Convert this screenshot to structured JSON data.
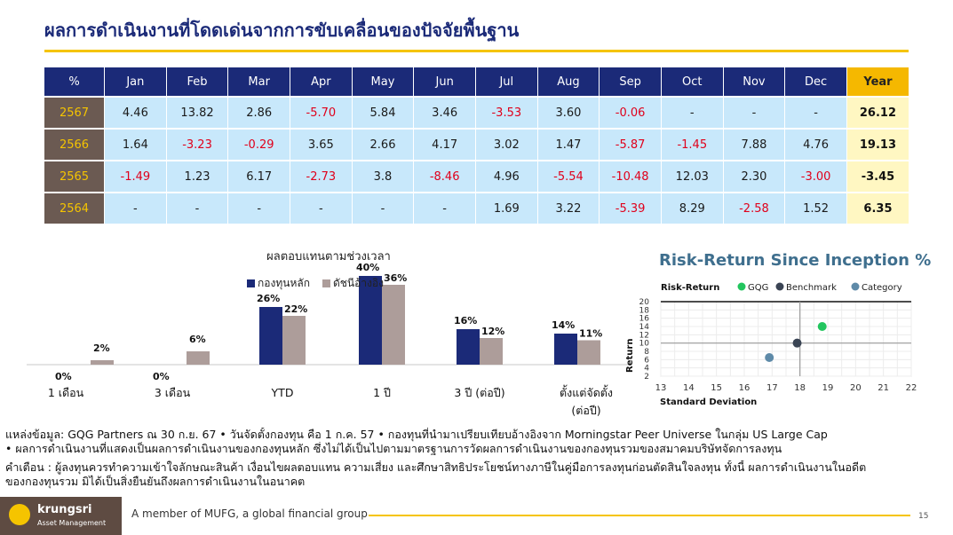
{
  "title": "ผลการดำเนินงานที่โดดเด่นจากการขับเคลื่อนของปัจจัยพื้นฐาน",
  "table": {
    "headers": [
      "%",
      "Jan",
      "Feb",
      "Mar",
      "Apr",
      "May",
      "Jun",
      "Jul",
      "Aug",
      "Sep",
      "Oct",
      "Nov",
      "Dec",
      "Year"
    ],
    "rows": [
      {
        "year": "2567",
        "values": [
          "4.46",
          "13.82",
          "2.86",
          "-5.70",
          "5.84",
          "3.46",
          "-3.53",
          "3.60",
          "-0.06",
          "-",
          "-",
          "-"
        ],
        "total": "26.12"
      },
      {
        "year": "2566",
        "values": [
          "1.64",
          "-3.23",
          "-0.29",
          "3.65",
          "2.66",
          "4.17",
          "3.02",
          "1.47",
          "-5.87",
          "-1.45",
          "7.88",
          "4.76"
        ],
        "total": "19.13"
      },
      {
        "year": "2565",
        "values": [
          "-1.49",
          "1.23",
          "6.17",
          "-2.73",
          "3.8",
          "-8.46",
          "4.96",
          "-5.54",
          "-10.48",
          "12.03",
          "2.30",
          "-3.00"
        ],
        "total": "-3.45"
      },
      {
        "year": "2564",
        "values": [
          "-",
          "-",
          "-",
          "-",
          "-",
          "-",
          "1.69",
          "3.22",
          "-5.39",
          "8.29",
          "-2.58",
          "1.52"
        ],
        "total": "6.35"
      }
    ]
  },
  "chart_data": [
    {
      "type": "bar",
      "title": "ผลตอบแทนตามช่วงเวลา",
      "categories": [
        "1 เดือน",
        "3 เดือน",
        "YTD",
        "1 ปี",
        "3 ปี (ต่อปี)",
        "ตั้งแต่จัดตั้ง (ต่อปี)"
      ],
      "series": [
        {
          "name": "กองทุนหลัก",
          "values": [
            0,
            0,
            26,
            40,
            16,
            14
          ],
          "labels": [
            "0%",
            "0%",
            "26%",
            "40%",
            "16%",
            "14%"
          ],
          "color": "#1b2a78"
        },
        {
          "name": "ดัชนีอ้างอิง",
          "values": [
            2,
            6,
            22,
            36,
            12,
            11
          ],
          "labels": [
            "2%",
            "6%",
            "22%",
            "36%",
            "12%",
            "11%"
          ],
          "color": "#ad9d9a"
        }
      ],
      "ylim": [
        0,
        45
      ],
      "legend": "top-center"
    },
    {
      "type": "scatter",
      "title": "Risk-Return Since Inception %",
      "chart_label": "Risk-Return",
      "xlabel": "Standard Deviation",
      "ylabel": "Return",
      "xlim": [
        13,
        22
      ],
      "ylim": [
        2,
        20
      ],
      "x_ticks": [
        "13",
        "14",
        "15",
        "16",
        "17",
        "18",
        "19",
        "20",
        "21",
        "22"
      ],
      "y_ticks": [
        "2",
        "4",
        "6",
        "8",
        "10",
        "12",
        "14",
        "16",
        "18",
        "20"
      ],
      "cross": {
        "x": 18.0,
        "y": 10.0
      },
      "series": [
        {
          "name": "GQG",
          "x": 18.8,
          "y": 14.0,
          "color": "#22c55e"
        },
        {
          "name": "Benchmark",
          "x": 17.9,
          "y": 10.0,
          "color": "#3a4454"
        },
        {
          "name": "Category",
          "x": 16.9,
          "y": 6.5,
          "color": "#5e8aa8"
        }
      ],
      "legend": "top"
    }
  ],
  "notes": {
    "line1": "แหล่งข้อมูล: GQG Partners ณ 30 ก.ย. 67 • วันจัดตั้งกองทุน คือ 1 ก.ค. 57 • กองทุนที่นำมาเปรียบเทียบอ้างอิงจาก Morningstar Peer Universe ในกลุ่ม US Large Cap",
    "line2": "• ผลการดำเนินงานที่แสดงเป็นผลการดำเนินงานของกองทุนหลัก ซึ่งไม่ได้เป็นไปตามมาตรฐานการวัดผลการดำเนินงานของกองทุนรวมของสมาคมบริษัทจัดการลงทุน",
    "line3": "คำเตือน : ผู้ลงทุนควรทำความเข้าใจลักษณะสินค้า เงื่อนไขผลตอบแทน ความเสี่ยง และศึกษาสิทธิประโยชน์ทางภาษีในคู่มือการลงทุนก่อนตัดสินใจลงทุน ทั้งนี้ ผลการดำเนินงานในอดีต",
    "line4": "ของกองทุนรวม มิได้เป็นสิ่งยืนยันถึงผลการดำเนินงานในอนาคต"
  },
  "footer": {
    "logo_text": "krungsri",
    "logo_sub": "Asset Management",
    "tagline": "A member of MUFG, a global financial group",
    "page": "15"
  }
}
